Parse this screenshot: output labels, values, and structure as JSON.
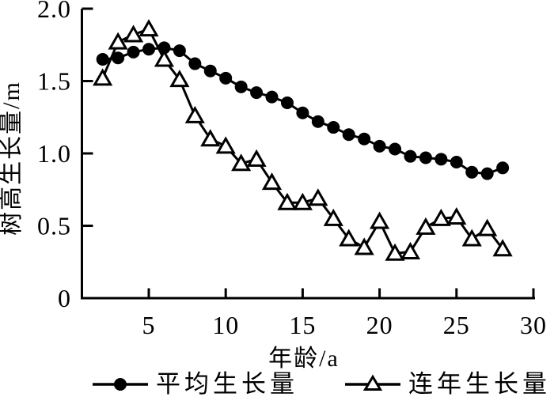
{
  "figure": {
    "background": "#ffffff",
    "ink": "#000000"
  },
  "axes": {
    "x_label": "年龄/a",
    "y_label": "树高生长量/m",
    "x_ticks": [
      "5",
      "10",
      "15",
      "20",
      "25",
      "30"
    ],
    "y_ticks": [
      "0",
      "0.5",
      "1.0",
      "1.5",
      "2.0"
    ]
  },
  "legend": {
    "items": [
      {
        "label": "平均生长量",
        "marker": "filled-circle"
      },
      {
        "label": "连年生长量",
        "marker": "open-triangle"
      }
    ]
  },
  "chart_data": {
    "type": "line",
    "title": "",
    "xlabel": "年龄/a",
    "ylabel": "树高生长量/m",
    "xlim": [
      0.5,
      30
    ],
    "ylim": [
      0,
      2.0
    ],
    "grid": false,
    "legend_position": "bottom",
    "x_tick_values": [
      5,
      10,
      15,
      20,
      25,
      30
    ],
    "y_tick_values": [
      0,
      0.5,
      1.0,
      1.5,
      2.0
    ],
    "x": [
      2,
      3,
      4,
      5,
      6,
      7,
      8,
      9,
      10,
      11,
      12,
      13,
      14,
      15,
      16,
      17,
      18,
      19,
      20,
      21,
      22,
      23,
      24,
      25,
      26,
      27,
      28
    ],
    "series": [
      {
        "id": "average",
        "name": "平均生长量",
        "marker": "filled-circle",
        "values": [
          1.65,
          1.66,
          1.7,
          1.72,
          1.73,
          1.71,
          1.62,
          1.57,
          1.52,
          1.46,
          1.42,
          1.39,
          1.35,
          1.28,
          1.22,
          1.18,
          1.13,
          1.1,
          1.05,
          1.03,
          0.98,
          0.97,
          0.96,
          0.94,
          0.87,
          0.86,
          0.9
        ]
      },
      {
        "id": "annual",
        "name": "连年生长量",
        "marker": "open-triangle",
        "values": [
          1.52,
          1.77,
          1.82,
          1.86,
          1.65,
          1.51,
          1.26,
          1.1,
          1.05,
          0.93,
          0.96,
          0.8,
          0.66,
          0.66,
          0.69,
          0.55,
          0.41,
          0.35,
          0.53,
          0.31,
          0.32,
          0.49,
          0.55,
          0.56,
          0.41,
          0.48,
          0.34
        ]
      }
    ]
  }
}
